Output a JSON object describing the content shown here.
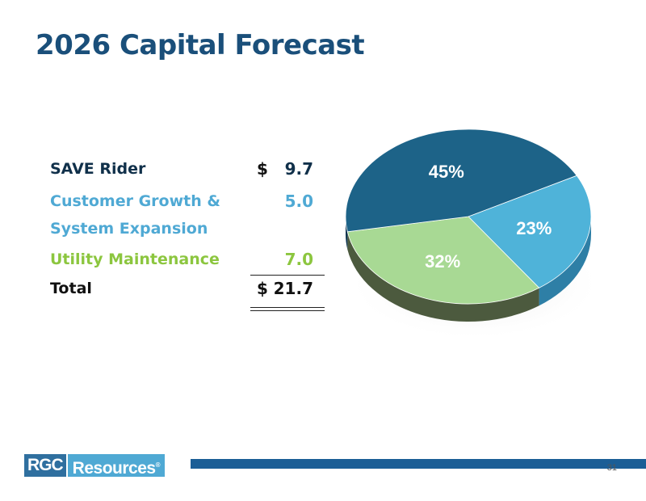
{
  "slide": {
    "title": "2026 Capital Forecast",
    "page_number": "31"
  },
  "logo": {
    "part1": "RGC",
    "part2": "Resources",
    "mark": "®"
  },
  "table": {
    "rows": [
      {
        "label": "SAVE Rider",
        "currency": "$",
        "amount": "9.7",
        "color": "#10304a"
      },
      {
        "label_line1": "Customer Growth &",
        "label_line2": "System Expansion",
        "amount": "5.0",
        "color": "#4fa9d4"
      },
      {
        "label": "Utility Maintenance",
        "amount": "7.0",
        "color": "#8cc63f"
      },
      {
        "label": "Total",
        "currency": "$",
        "amount": "21.7",
        "color": "#111111"
      }
    ]
  },
  "chart_data": {
    "type": "pie",
    "style": "3d",
    "slices": [
      {
        "label": "23%",
        "value": 23,
        "color": "#4fb3d9",
        "side_color": "#2e7fa6"
      },
      {
        "label": "32%",
        "value": 32,
        "color": "#a8d994",
        "side_color": "#4c5a3e"
      },
      {
        "label": "45%",
        "value": 45,
        "color": "#1d6388",
        "side_color": "#0d3450"
      }
    ],
    "start_angle_deg": -28,
    "direction": "clockwise",
    "legend": "none"
  }
}
